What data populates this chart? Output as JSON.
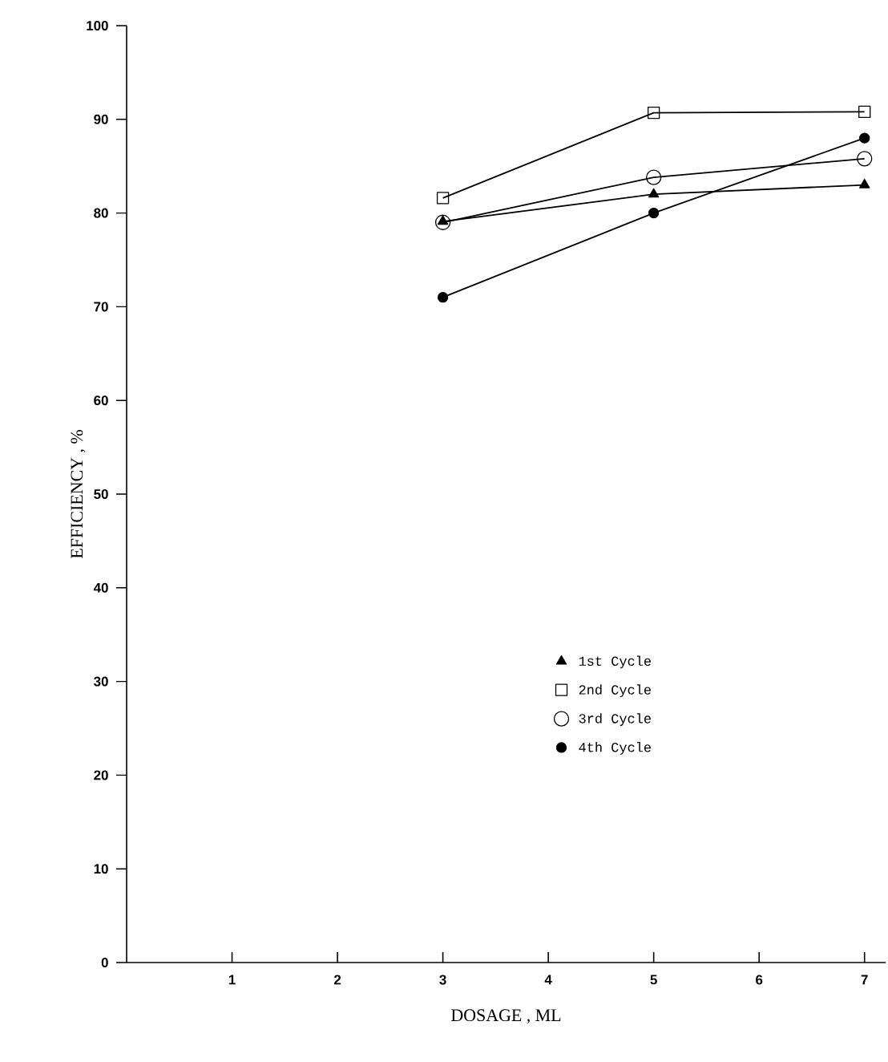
{
  "chart_data": {
    "type": "line",
    "xlabel": "DOSAGE , ML",
    "ylabel": "EFFICIENCY , %",
    "x": [
      3,
      5,
      7
    ],
    "series": [
      {
        "name": "1st Cycle",
        "color": "#000000",
        "marker": "triangle",
        "values": [
          79.1,
          82.0,
          83.0
        ]
      },
      {
        "name": "2nd Cycle",
        "color": "#000000",
        "marker": "square",
        "values": [
          81.6,
          90.7,
          90.8
        ]
      },
      {
        "name": "3rd Cycle",
        "color": "#000000",
        "marker": "circle",
        "values": [
          79.0,
          83.8,
          85.8
        ]
      },
      {
        "name": "4th Cycle",
        "color": "#000000",
        "marker": "circle",
        "values": [
          71.0,
          80.0,
          88.0
        ]
      }
    ],
    "xlim": [
      0,
      7.2
    ],
    "xticks": [
      1,
      2,
      3,
      4,
      5,
      6,
      7
    ],
    "ylim": [
      0,
      100
    ],
    "yticks": [
      0,
      10,
      20,
      30,
      40,
      50,
      60,
      70,
      80,
      90,
      100
    ],
    "grid": false,
    "legend": "right",
    "line_style": "solid"
  }
}
